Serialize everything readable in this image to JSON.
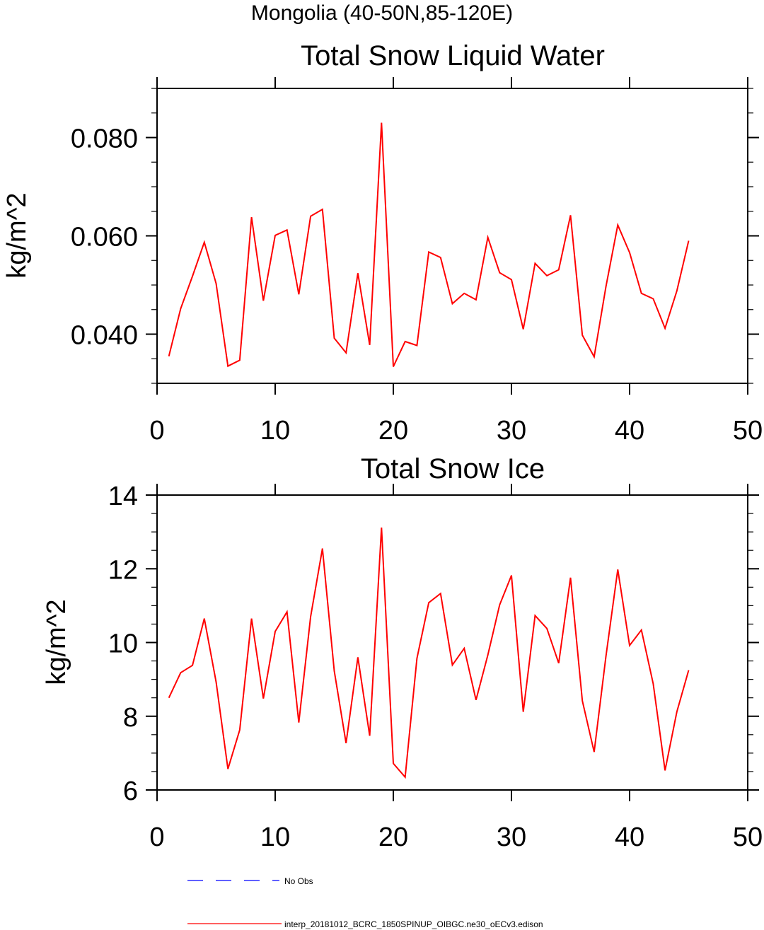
{
  "page_title": "Mongolia (40-50N,85-120E)",
  "chart_data": [
    {
      "type": "line",
      "title": "Total Snow Liquid Water",
      "xlabel": "",
      "ylabel": "kg/m^2",
      "xlim": [
        0,
        50
      ],
      "ylim": [
        0.03,
        0.09
      ],
      "x_ticks": [
        0,
        10,
        20,
        30,
        40,
        50
      ],
      "x_tick_labels": [
        "0",
        "10",
        "20",
        "30",
        "40",
        "50"
      ],
      "y_ticks": [
        0.04,
        0.06,
        0.08
      ],
      "y_tick_labels": [
        "0.040",
        "0.060",
        "0.080"
      ],
      "y_minor_step": 0.005,
      "x_minor_step": 10,
      "grid": false,
      "series": [
        {
          "color": "#ff0000",
          "x": [
            1,
            2,
            3,
            4,
            5,
            6,
            7,
            8,
            9,
            10,
            11,
            12,
            13,
            14,
            15,
            16,
            17,
            18,
            19,
            20,
            21,
            22,
            23,
            24,
            25,
            26,
            27,
            28,
            29,
            30,
            31,
            32,
            33,
            34,
            35,
            36,
            37,
            38,
            39,
            40,
            41,
            42,
            43,
            44,
            45
          ],
          "values": [
            0.0355,
            0.0452,
            0.0518,
            0.0587,
            0.0503,
            0.0335,
            0.0347,
            0.0638,
            0.0468,
            0.0601,
            0.0612,
            0.0481,
            0.064,
            0.0654,
            0.0392,
            0.0362,
            0.0524,
            0.0378,
            0.083,
            0.0334,
            0.0385,
            0.0377,
            0.0567,
            0.0556,
            0.0462,
            0.0483,
            0.047,
            0.0597,
            0.0525,
            0.0511,
            0.041,
            0.0544,
            0.0519,
            0.0531,
            0.0642,
            0.0398,
            0.0354,
            0.0497,
            0.0622,
            0.0566,
            0.0483,
            0.0472,
            0.0412,
            0.0488,
            0.059
          ]
        }
      ]
    },
    {
      "type": "line",
      "title": "Total Snow Ice",
      "xlabel": "",
      "ylabel": "kg/m^2",
      "xlim": [
        0,
        50
      ],
      "ylim": [
        6,
        14
      ],
      "x_ticks": [
        0,
        10,
        20,
        30,
        40,
        50
      ],
      "x_tick_labels": [
        "0",
        "10",
        "20",
        "30",
        "40",
        "50"
      ],
      "y_ticks": [
        6,
        8,
        10,
        12,
        14
      ],
      "y_tick_labels": [
        "6",
        "8",
        "10",
        "12",
        "14"
      ],
      "y_minor_step": 0.5,
      "x_minor_step": 10,
      "grid": false,
      "series": [
        {
          "color": "#ff0000",
          "x": [
            1,
            2,
            3,
            4,
            5,
            6,
            7,
            8,
            9,
            10,
            11,
            12,
            13,
            14,
            15,
            16,
            17,
            18,
            19,
            20,
            21,
            22,
            23,
            24,
            25,
            26,
            27,
            28,
            29,
            30,
            31,
            32,
            33,
            34,
            35,
            36,
            37,
            38,
            39,
            40,
            41,
            42,
            43,
            44,
            45
          ],
          "values": [
            8.5,
            9.18,
            9.38,
            10.65,
            8.93,
            6.57,
            7.63,
            10.65,
            8.48,
            10.3,
            10.83,
            7.83,
            10.7,
            12.55,
            9.23,
            7.27,
            9.6,
            7.47,
            13.12,
            6.72,
            6.35,
            9.57,
            11.08,
            11.33,
            9.39,
            9.84,
            8.44,
            9.66,
            11.02,
            11.82,
            8.12,
            10.73,
            10.38,
            9.44,
            11.76,
            8.42,
            7.03,
            9.63,
            11.98,
            9.92,
            10.34,
            8.88,
            6.53,
            8.12,
            9.25
          ]
        }
      ]
    }
  ],
  "legend": {
    "items": [
      {
        "label": "No Obs",
        "color": "#0000ff",
        "style": "dashed"
      },
      {
        "label": "interp_20181012_BCRC_1850SPINUP_OIBGC.ne30_oECv3.edison",
        "color": "#ff0000",
        "style": "solid"
      }
    ]
  }
}
